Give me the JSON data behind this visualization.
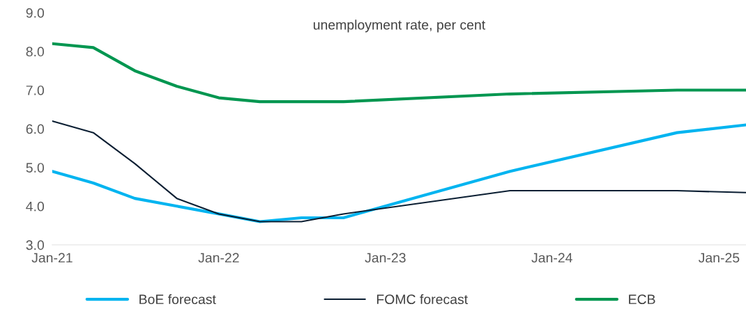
{
  "chart_data": {
    "type": "line",
    "title": "unemployment rate, per cent",
    "x": [
      "2021-01",
      "2021-04",
      "2021-07",
      "2021-10",
      "2022-01",
      "2022-04",
      "2022-07",
      "2022-10",
      "2023-10",
      "2024-10",
      "2025-03"
    ],
    "series": [
      {
        "name": "BoE forecast",
        "color": "#00b4f0",
        "values": [
          4.9,
          4.6,
          4.2,
          4.0,
          3.8,
          3.6,
          3.7,
          3.7,
          4.9,
          5.9,
          6.1
        ]
      },
      {
        "name": "FOMC forecast",
        "color": "#0a1e32",
        "values": [
          6.2,
          5.9,
          5.1,
          4.2,
          3.8,
          3.6,
          3.6,
          3.8,
          4.4,
          4.4,
          4.35
        ]
      },
      {
        "name": "ECB",
        "color": "#009650",
        "values": [
          8.2,
          8.1,
          7.5,
          7.1,
          6.8,
          6.7,
          6.7,
          6.7,
          6.9,
          7.0,
          7.0
        ]
      }
    ],
    "xticks": [
      {
        "value": "2021-01",
        "label": "Jan-21"
      },
      {
        "value": "2022-01",
        "label": "Jan-22"
      },
      {
        "value": "2023-01",
        "label": "Jan-23"
      },
      {
        "value": "2024-01",
        "label": "Jan-24"
      },
      {
        "value": "2025-01",
        "label": "Jan-25"
      }
    ],
    "xlim": [
      "2021-01",
      "2025-03"
    ],
    "ylim": [
      3,
      9
    ],
    "yticks": [
      {
        "value": 3,
        "label": "3.0"
      },
      {
        "value": 4,
        "label": "4.0"
      },
      {
        "value": 5,
        "label": "5.0"
      },
      {
        "value": 6,
        "label": "6.0"
      },
      {
        "value": 7,
        "label": "7.0"
      },
      {
        "value": 8,
        "label": "8.0"
      },
      {
        "value": 9,
        "label": "9.0"
      }
    ],
    "grid": false,
    "legend": "bottom",
    "marker": "none",
    "line_style": "solid"
  }
}
